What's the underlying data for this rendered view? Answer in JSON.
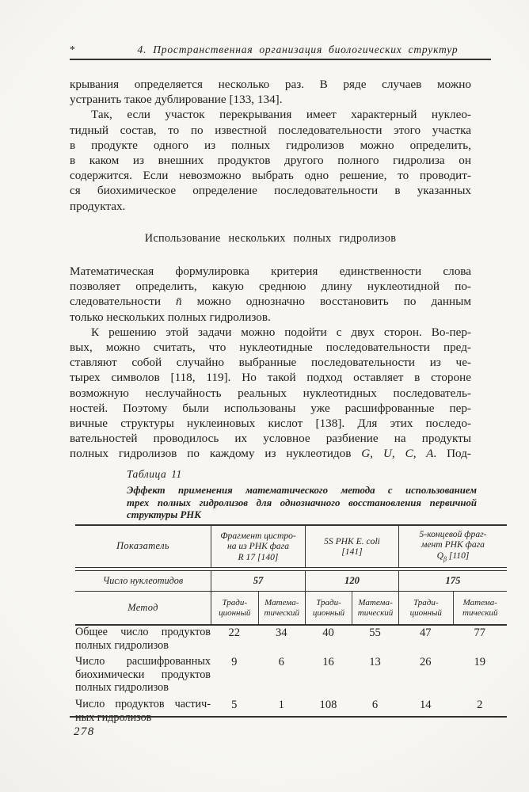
{
  "running_head": {
    "marker": "*",
    "title": "4. Пространственная организация биологических структур"
  },
  "body": {
    "para1": [
      "крывания определяется несколько раз. В ряде случаев можно",
      "устранить такое дублирование [133, 134]."
    ],
    "para2": [
      "Так, если участок перекрывания имеет характерный нуклео-",
      "тидный состав, то по известной последовательности этого участка",
      "в продукте одного из полных гидролизов можно определить,",
      "в каком из внешних продуктов другого полного гидролиза он",
      "содержится. Если невозможно выбрать одно решение, то проводит-",
      "ся биохимическое определение последовательности в указанных",
      "продуктах."
    ],
    "section_heading": "Использование нескольких полных гидролизов",
    "para3": [
      "Математическая формулировка критерия единственности слова",
      "позволяет определить, какую среднюю длину нуклеотидной по-"
    ],
    "para3_l3": {
      "pre": "следовательности ",
      "math": "n̄",
      "post": " можно однозначно восстановить по данным"
    },
    "para3_l4": "только нескольких полных гидролизов.",
    "para4": [
      "К решению этой задачи можно подойти с двух сторон. Во-пер-",
      "вых, можно считать, что нуклеотидные последовательности пред-",
      "ставляют собой случайно выбранные последовательности из че-",
      "тырех символов [118, 119]. Но такой подход оставляет в стороне",
      "возможную неслучайность реальных нуклеотидных последователь-",
      "ностей. Поэтому были использованы уже расшифрованные пер-",
      "вичные структуры нуклеиновых кислот [138]. Для этих последо-",
      "вательностей проводилось их условное разбиение на продукты"
    ],
    "para4_l9": {
      "pre": "полных гидролизов по каждому из нуклеотидов ",
      "math": "G, U, C, A",
      "post": ". Под-"
    }
  },
  "table": {
    "label": "Таблица 11",
    "caption": [
      "Эффект применения математического метода с использованием",
      "трех полных гидролизов для однозначного восстановления первичной",
      "структуры РНК"
    ],
    "header": {
      "col1": "Показатель",
      "col2": [
        "Фрагмент цистро-",
        "на из РНК фага",
        "R 17 [140]"
      ],
      "col3": [
        "5S РНК E. coli",
        "[141]"
      ],
      "col4_l1": "5-концевой фраг-",
      "col4_l2": "мент РНК фага",
      "col4_q": "Q",
      "col4_beta": "β",
      "col4_ref": " [110]"
    },
    "nucleotides_row": {
      "label": "Число нуклеотидов",
      "values": [
        "57",
        "120",
        "175"
      ]
    },
    "method_row": {
      "label": "Метод",
      "trad1": "Тради-",
      "trad2": "ционный",
      "math1": "Матема-",
      "math2": "тический"
    },
    "rows": [
      {
        "label": [
          "Общее число продуктов",
          "полных гидролизов"
        ],
        "values": [
          "22",
          "34",
          "40",
          "55",
          "47",
          "77"
        ]
      },
      {
        "label": [
          "Число расшифрованных",
          "биохимически продуктов",
          "полных гидролизов"
        ],
        "values": [
          "9",
          "6",
          "16",
          "13",
          "26",
          "19"
        ]
      },
      {
        "label": [
          "Число продуктов частич-",
          "ных гидролизов"
        ],
        "values": [
          "5",
          "1",
          "108",
          "6",
          "14",
          "2"
        ]
      }
    ]
  },
  "page": {
    "number": "278"
  }
}
